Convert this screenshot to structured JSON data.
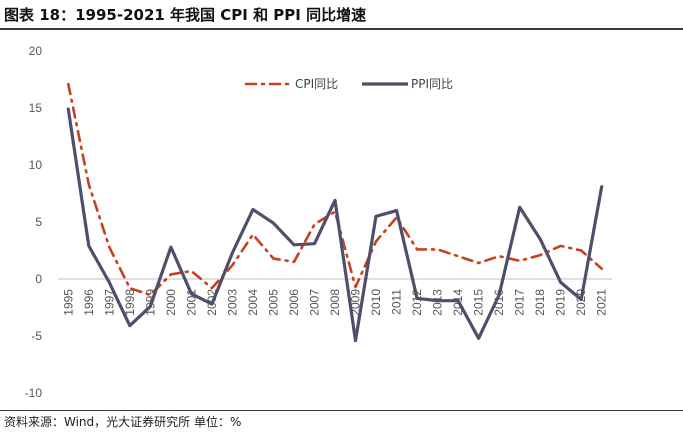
{
  "title": "图表 18：1995-2021 年我国 CPI 和 PPI 同比增速",
  "source": "资料来源：Wind，光大证券研究所  单位：%",
  "colors": {
    "cpi": "#c8401f",
    "ppi": "#4f4f6b",
    "axis": "#bfbfbf"
  },
  "chart_data": {
    "type": "line",
    "x": [
      "1995",
      "1996",
      "1997",
      "1998",
      "1999",
      "2000",
      "2001",
      "2002",
      "2003",
      "2004",
      "2005",
      "2006",
      "2007",
      "2008",
      "2009",
      "2010",
      "2011",
      "2012",
      "2013",
      "2014",
      "2015",
      "2016",
      "2017",
      "2018",
      "2019",
      "2020",
      "2021"
    ],
    "ylim": [
      -10,
      20
    ],
    "yticks": [
      -10,
      -5,
      0,
      5,
      10,
      15,
      20
    ],
    "grid": false,
    "legend": "top-center",
    "series": [
      {
        "name": "CPI同比",
        "style": "dash-dot",
        "values": [
          17.1,
          8.3,
          2.8,
          -0.8,
          -1.4,
          0.4,
          0.7,
          -0.8,
          1.2,
          3.9,
          1.8,
          1.5,
          4.8,
          5.9,
          -0.7,
          3.3,
          5.4,
          2.6,
          2.6,
          2.0,
          1.4,
          2.0,
          1.6,
          2.1,
          2.9,
          2.5,
          0.9
        ]
      },
      {
        "name": "PPI同比",
        "style": "solid",
        "values": [
          14.9,
          2.9,
          -0.3,
          -4.1,
          -2.4,
          2.8,
          -1.3,
          -2.2,
          2.3,
          6.1,
          4.9,
          3.0,
          3.1,
          6.9,
          -5.4,
          5.5,
          6.0,
          -1.7,
          -1.9,
          -1.9,
          -5.2,
          -1.4,
          6.3,
          3.5,
          -0.3,
          -1.8,
          8.1
        ]
      }
    ]
  }
}
